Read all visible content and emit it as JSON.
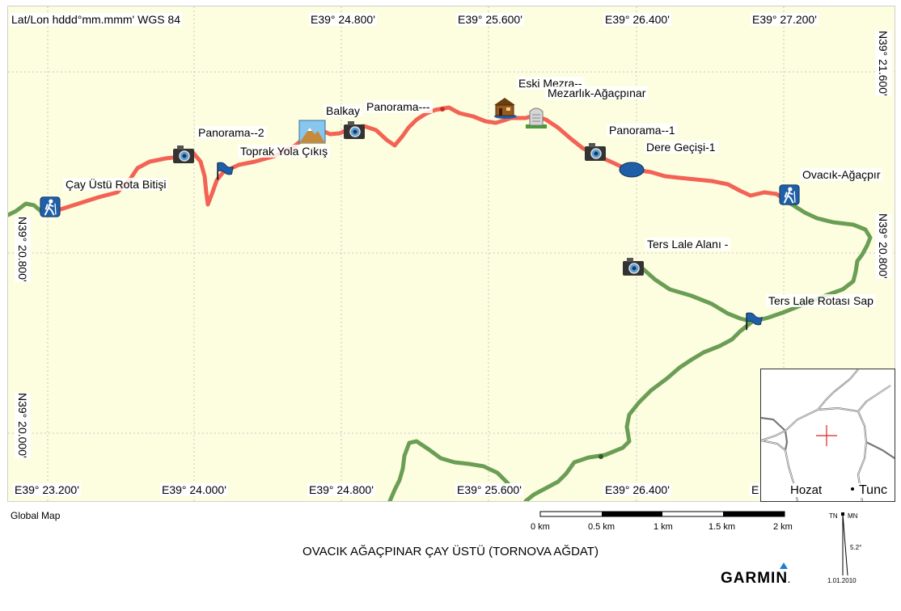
{
  "header": {
    "coord_format": "Lat/Lon hddd°mm.mmm' WGS 84"
  },
  "map": {
    "top_ticks": [
      "E39° 24.800'",
      "E39° 25.600'",
      "E39° 26.400'",
      "E39° 27.200'"
    ],
    "bottom_ticks": [
      "E39° 23.200'",
      "E39° 24.000'",
      "E39° 24.800'",
      "E39° 25.600'",
      "E39° 26.400'",
      "E"
    ],
    "left_ticks": [
      "N39° 20.800'",
      "N39° 20.000'"
    ],
    "right_ticks": [
      "N39° 21.600'",
      "N39° 20.800'"
    ],
    "route_colors": {
      "red_track": "#f26355",
      "green_track": "#6b9e55",
      "background": "#fdfde0",
      "grid": "#c9c9c9"
    },
    "waypoints": [
      {
        "label": "Çay Üstü Rota Bitişi",
        "icon": "hiker-icon"
      },
      {
        "label": "Panorama--2",
        "icon": "camera-icon"
      },
      {
        "label": "Toprak Yola Çıkış",
        "icon": "flag-icon"
      },
      {
        "label": "Balkay",
        "icon": "summit-icon"
      },
      {
        "label": "Panorama---",
        "icon": "camera-icon"
      },
      {
        "label": "Eski Mezra--",
        "icon": "house-icon"
      },
      {
        "label": "Mezarlık-Ağaçpınar",
        "icon": "gravestone-icon"
      },
      {
        "label": "Panorama--1",
        "icon": "camera-icon"
      },
      {
        "label": "Dere Geçişi-1",
        "icon": "blue-oval-icon"
      },
      {
        "label": "Ovacık-Ağaçpır",
        "icon": "hiker-icon"
      },
      {
        "label": "Ters Lale Alanı -",
        "icon": "camera-icon"
      },
      {
        "label": "Ters Lale Rotası Sap",
        "icon": "flag-icon"
      }
    ],
    "inset_labels": [
      "Hozat",
      "Tunc"
    ]
  },
  "footer": {
    "legend": "Global Map",
    "scale_labels": [
      "0 km",
      "0.5 km",
      "1 km",
      "1.5 km",
      "2 km"
    ],
    "title": "OVACIK AĞAÇPINAR ÇAY ÜSTÜ (TORNOVA AĞDAT)",
    "brand": "GARMIN",
    "brand_mark": ".",
    "north": {
      "tn": "TN",
      "mn": "MN",
      "declination": "5.2°",
      "date": "1.01.2010"
    }
  }
}
